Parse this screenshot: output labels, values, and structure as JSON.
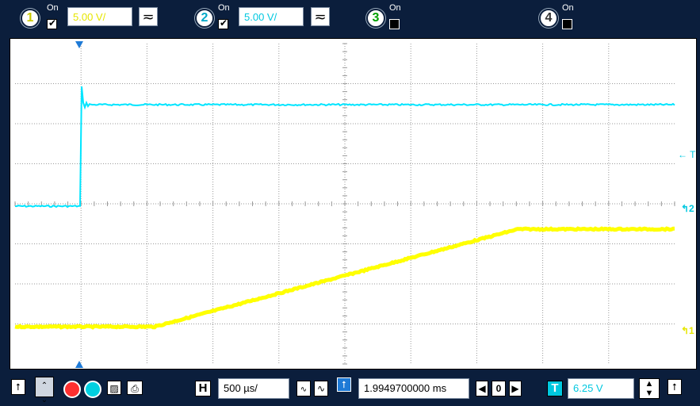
{
  "channels": [
    {
      "number": "1",
      "on_label": "On",
      "checked": true,
      "volts": "5.00 V/",
      "color": "#ffff00",
      "volt_color": "#e6e600"
    },
    {
      "number": "2",
      "on_label": "On",
      "checked": true,
      "volts": "5.00 V/",
      "color": "#00ffff",
      "volt_color": "#00c8e0"
    },
    {
      "number": "3",
      "on_label": "On",
      "checked": false,
      "color": "#00ff00"
    },
    {
      "number": "4",
      "on_label": "On",
      "checked": false,
      "color": "#ffffff"
    }
  ],
  "coupling_symbol": "≂",
  "markers": {
    "trigger_level": "← T",
    "ch2_ref": "↰2",
    "ch1_ref": "↰1"
  },
  "bottom": {
    "horizontal_label": "H",
    "timebase": "500 µs/",
    "delay": "1.9949700000 ms",
    "delay_zero": "0",
    "trigger_label": "T",
    "trigger_level": "6.25 V"
  },
  "colors": {
    "background": "#0b1e3c",
    "ch1": "#ffff00",
    "ch2": "#00e5ff",
    "grid": "#9a9a9a"
  }
}
